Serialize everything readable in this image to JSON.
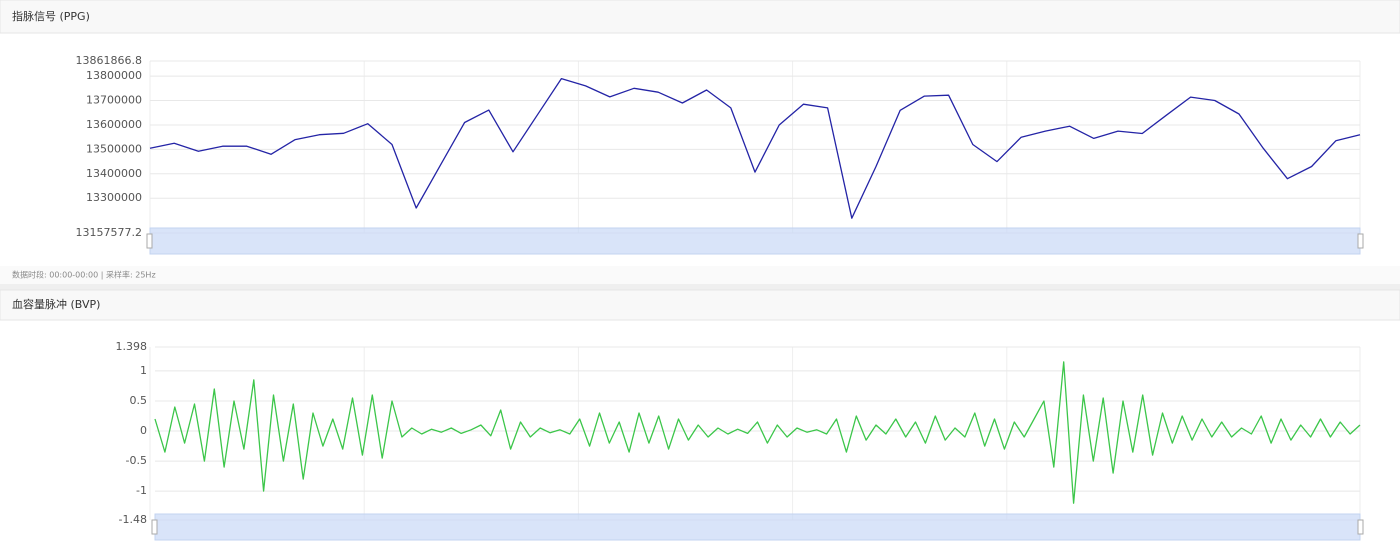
{
  "chart_data": [
    {
      "type": "line",
      "title": "指脉信号 (PPG)",
      "color": "#2424a6",
      "values": [
        13505000,
        13525000,
        13492000,
        13513000,
        13513000,
        13480000,
        13540000,
        13560000,
        13566000,
        13605000,
        13520000,
        13260000,
        13435000,
        13610000,
        13661000,
        13490000,
        13640000,
        13790000,
        13760000,
        13715000,
        13750000,
        13734000,
        13690000,
        13743000,
        13670000,
        13407000,
        13600000,
        13685000,
        13670000,
        13218000,
        13430000,
        13660000,
        13718000,
        13722000,
        13520000,
        13450000,
        13550000,
        13575000,
        13595000,
        13545000,
        13575000,
        13565000,
        13640000,
        13714000,
        13700000,
        13645000,
        13505000,
        13380000,
        13430000,
        13535000,
        13560000
      ],
      "ylim": [
        13157577.2,
        13861866.8
      ],
      "yticks": [
        13157577.2,
        13300000,
        13400000,
        13500000,
        13600000,
        13700000,
        13800000,
        13861866.8
      ],
      "grid": true,
      "note": "数据时段: 00:00-00:00 | 采样率: 25Hz"
    },
    {
      "type": "line",
      "title": "血容量脉冲 (BVP)",
      "color": "#3cc64a",
      "values": [
        0.2,
        -0.35,
        0.4,
        -0.2,
        0.45,
        -0.5,
        0.7,
        -0.6,
        0.5,
        -0.3,
        0.85,
        -1.0,
        0.6,
        -0.5,
        0.45,
        -0.8,
        0.3,
        -0.25,
        0.2,
        -0.3,
        0.55,
        -0.4,
        0.6,
        -0.45,
        0.5,
        -0.1,
        0.05,
        -0.05,
        0.03,
        -0.02,
        0.05,
        -0.04,
        0.02,
        0.1,
        -0.08,
        0.35,
        -0.3,
        0.15,
        -0.1,
        0.05,
        -0.03,
        0.02,
        -0.05,
        0.2,
        -0.25,
        0.3,
        -0.2,
        0.15,
        -0.35,
        0.3,
        -0.2,
        0.25,
        -0.3,
        0.2,
        -0.15,
        0.1,
        -0.1,
        0.05,
        -0.05,
        0.03,
        -0.04,
        0.15,
        -0.2,
        0.1,
        -0.1,
        0.05,
        -0.02,
        0.02,
        -0.05,
        0.2,
        -0.35,
        0.25,
        -0.15,
        0.1,
        -0.05,
        0.2,
        -0.1,
        0.15,
        -0.2,
        0.25,
        -0.15,
        0.05,
        -0.1,
        0.3,
        -0.25,
        0.2,
        -0.3,
        0.15,
        -0.1,
        0.2,
        0.5,
        -0.6,
        1.15,
        -1.2,
        0.6,
        -0.5,
        0.55,
        -0.7,
        0.5,
        -0.35,
        0.6,
        -0.4,
        0.3,
        -0.2,
        0.25,
        -0.15,
        0.2,
        -0.1,
        0.15,
        -0.1,
        0.05,
        -0.05,
        0.25,
        -0.2,
        0.2,
        -0.15,
        0.1,
        -0.1,
        0.2,
        -0.1,
        0.15,
        -0.05,
        0.1
      ],
      "ylim": [
        -1.48,
        1.398
      ],
      "yticks": [
        -1.48,
        -1,
        -0.5,
        0,
        0.5,
        1,
        1.398
      ],
      "grid": true
    }
  ]
}
